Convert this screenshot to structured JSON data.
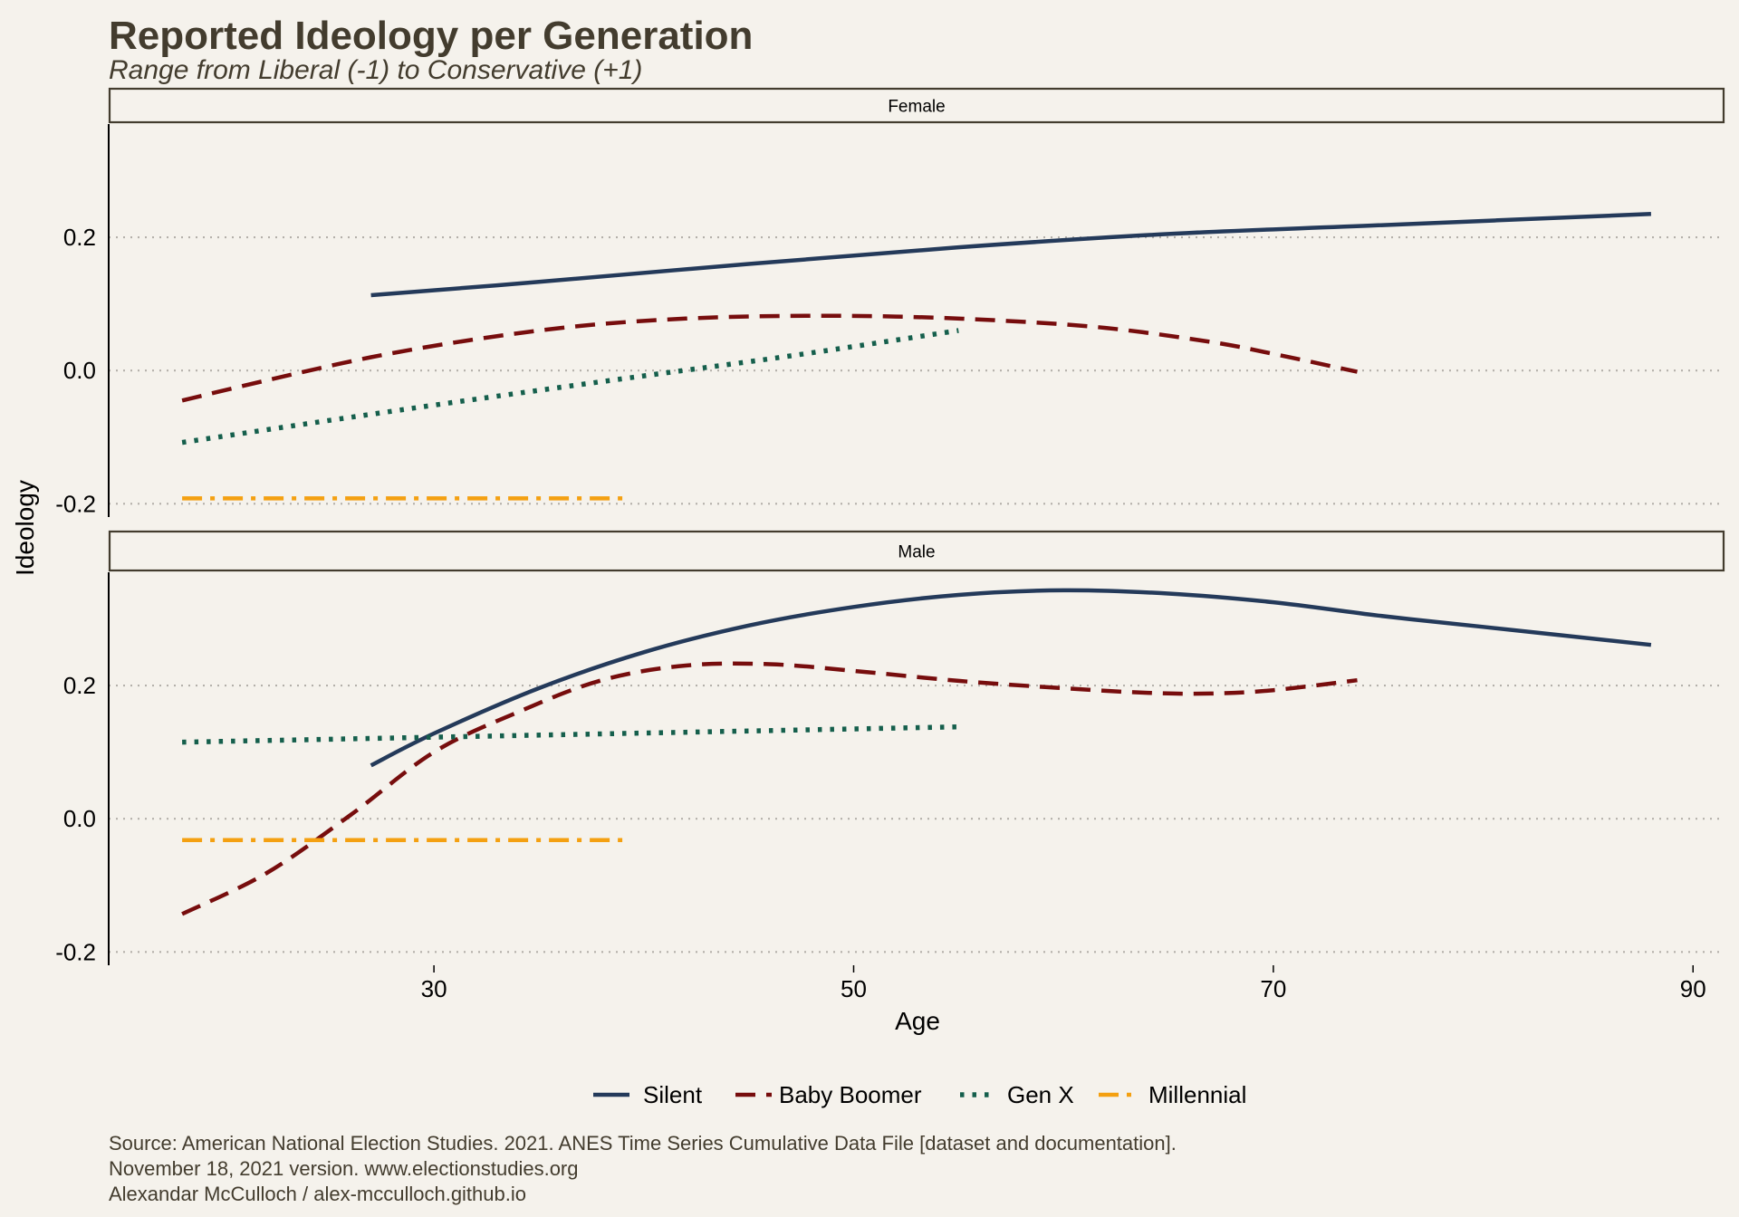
{
  "chart_data": {
    "type": "line",
    "title": "Reported Ideology per Generation",
    "subtitle": "Range from Liberal (-1) to Conservative (+1)",
    "xlabel": "Age",
    "ylabel": "Ideology",
    "xticks": [
      30,
      50,
      70,
      90
    ],
    "yticks": [
      -0.2,
      0.0,
      0.2
    ],
    "ytick_labels": [
      "-0.2",
      "0.0",
      "0.2"
    ],
    "xlim": [
      14.5,
      91.5
    ],
    "ylim": [
      -0.22,
      0.37
    ],
    "grid": "horizontal dotted",
    "legend_position": "bottom",
    "colors": {
      "Silent": "#243a5a",
      "Baby Boomer": "#770d0d",
      "Gen X": "#155f4c",
      "Millennial": "#f4a011",
      "title": "#433c2e",
      "background": "#f5f2ec",
      "grid": "#b4b0aa"
    },
    "series_order": [
      "Silent",
      "Baby Boomer",
      "Gen X",
      "Millennial"
    ],
    "panels": [
      {
        "label": "Female",
        "series": [
          {
            "name": "Silent",
            "x": [
              27,
              35,
              45,
              55,
              65,
              75,
              88
            ],
            "y": [
              0.113,
              0.133,
              0.16,
              0.185,
              0.205,
              0.218,
              0.235
            ]
          },
          {
            "name": "Baby Boomer",
            "x": [
              18,
              22,
              27,
              32,
              37,
              42,
              47,
              52,
              57,
              62,
              67,
              70,
              74
            ],
            "y": [
              -0.045,
              -0.015,
              0.02,
              0.047,
              0.067,
              0.078,
              0.082,
              0.081,
              0.075,
              0.064,
              0.043,
              0.025,
              -0.002
            ]
          },
          {
            "name": "Gen X",
            "x": [
              18,
              25,
              32,
              40,
              47,
              55
            ],
            "y": [
              -0.108,
              -0.075,
              -0.043,
              -0.008,
              0.022,
              0.06
            ]
          },
          {
            "name": "Millennial",
            "x": [
              18,
              39
            ],
            "y": [
              -0.192,
              -0.192
            ]
          }
        ]
      },
      {
        "label": "Male",
        "series": [
          {
            "name": "Silent",
            "x": [
              27,
              30,
              35,
              40,
              45,
              50,
              55,
              60,
              65,
              70,
              75,
              80,
              88
            ],
            "y": [
              0.08,
              0.128,
              0.196,
              0.25,
              0.29,
              0.318,
              0.336,
              0.343,
              0.338,
              0.325,
              0.305,
              0.288,
              0.261
            ]
          },
          {
            "name": "Baby Boomer",
            "x": [
              18,
              22,
              26,
              30,
              34,
              38,
              42,
              46,
              50,
              55,
              60,
              64,
              67,
              70,
              74
            ],
            "y": [
              -0.143,
              -0.082,
              0.005,
              0.1,
              0.16,
              0.208,
              0.23,
              0.232,
              0.222,
              0.207,
              0.196,
              0.189,
              0.188,
              0.193,
              0.208
            ]
          },
          {
            "name": "Gen X",
            "x": [
              18,
              55
            ],
            "y": [
              0.115,
              0.138
            ]
          },
          {
            "name": "Millennial",
            "x": [
              18,
              39
            ],
            "y": [
              -0.032,
              -0.032
            ]
          }
        ]
      }
    ]
  },
  "caption_lines": [
    "Source: American National Election Studies. 2021. ANES Time Series Cumulative Data File [dataset and documentation].",
    "November 18, 2021 version. www.electionstudies.org",
    "Alexandar McCulloch / alex-mcculloch.github.io"
  ]
}
